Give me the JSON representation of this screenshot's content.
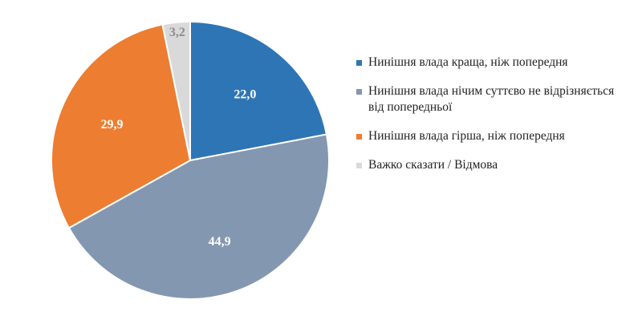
{
  "chart_data": {
    "type": "pie",
    "labels": [
      "Нинішня влада краща, ніж попередня",
      "Нинішня влада нічим суттєво не відрізняється від попередньої",
      "Нинішня влада гірша, ніж попередня",
      "Важко сказати / Відмова"
    ],
    "values": [
      22.0,
      44.9,
      29.9,
      3.2
    ],
    "value_labels": [
      "22,0",
      "44,9",
      "29,9",
      "3,2"
    ],
    "colors": [
      "#2E75B6",
      "#8497B0",
      "#ED7D31",
      "#D9D9D9"
    ],
    "value_label_colors": [
      "#ffffff",
      "#ffffff",
      "#ffffff",
      "#8C8C8C"
    ],
    "legend_position": "right",
    "start": "top, clockwise"
  },
  "legend": {
    "items": [
      {
        "label": "Нинішня влада краща, ніж попередня",
        "color": "#2E75B6"
      },
      {
        "label": "Нинішня влада нічим суттєво не відрізняється від попередньої",
        "color": "#8497B0"
      },
      {
        "label": "Нинішня влада гірша, ніж попередня",
        "color": "#ED7D31"
      },
      {
        "label": "Важко сказати / Відмова",
        "color": "#D9D9D9"
      }
    ]
  }
}
